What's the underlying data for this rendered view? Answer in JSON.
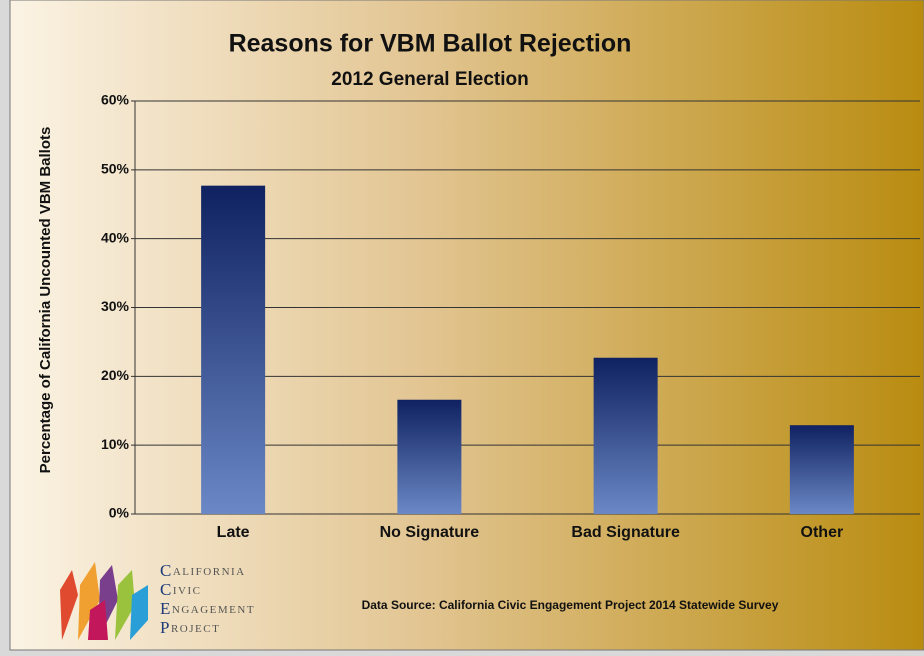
{
  "chart_data": {
    "type": "bar",
    "title": "Reasons for VBM Ballot Rejection",
    "subtitle": "2012 General Election",
    "y_label": "Percentage of California Uncounted VBM Ballots",
    "categories": [
      "Late",
      "No Signature",
      "Bad Signature",
      "Other"
    ],
    "values": [
      47.7,
      16.6,
      22.7,
      12.9
    ],
    "color": "#0f2160",
    "ylim": [
      0,
      60
    ],
    "yticks": [
      {
        "value": 0,
        "label": "0%"
      },
      {
        "value": 10,
        "label": "10%"
      },
      {
        "value": 20,
        "label": "20%"
      },
      {
        "value": 30,
        "label": "30%"
      },
      {
        "value": 40,
        "label": "40%"
      },
      {
        "value": 50,
        "label": "50%"
      },
      {
        "value": 60,
        "label": "60%"
      }
    ],
    "grid": true,
    "source": "Data Source: California Civic Engagement Project 2014 Statewide Survey",
    "logo": [
      "California",
      "Civic",
      "Engagement",
      "Project"
    ]
  }
}
